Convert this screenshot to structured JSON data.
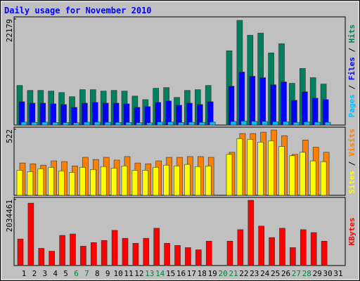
{
  "chart_data": {
    "type": "bar",
    "title": "Daily usage for November 2010",
    "categories": [
      "1",
      "2",
      "3",
      "4",
      "5",
      "6",
      "7",
      "8",
      "9",
      "10",
      "11",
      "12",
      "13",
      "14",
      "15",
      "16",
      "17",
      "18",
      "19",
      "20",
      "21",
      "22",
      "23",
      "24",
      "25",
      "26",
      "27",
      "28",
      "29",
      "30",
      "31"
    ],
    "weekend": [
      false,
      false,
      false,
      false,
      false,
      true,
      true,
      false,
      false,
      false,
      false,
      false,
      true,
      true,
      false,
      false,
      false,
      false,
      false,
      true,
      true,
      false,
      false,
      false,
      false,
      false,
      true,
      true,
      false,
      false,
      false
    ],
    "weekend_color": "#008040",
    "panels": [
      {
        "ylim": [
          0,
          22179
        ],
        "yticks": [
          22179
        ],
        "series": [
          {
            "name": "Hits",
            "color": "#00805c",
            "values": [
              8280,
              7250,
              7250,
              7100,
              6800,
              5920,
              7400,
              7400,
              7100,
              7250,
              7100,
              6060,
              5320,
              7690,
              7840,
              5770,
              7250,
              7400,
              8280,
              null,
              15530,
              21890,
              18780,
              19230,
              15090,
              17010,
              8730,
              11830,
              9910,
              8580,
              null
            ]
          },
          {
            "name": "Files",
            "color": "#0000ff",
            "values": [
              4880,
              4580,
              4580,
              4440,
              4290,
              3700,
              4580,
              4730,
              4580,
              4580,
              4440,
              3700,
              3850,
              4730,
              5030,
              4140,
              4580,
              4290,
              4880,
              null,
              8130,
              11090,
              10200,
              9910,
              8430,
              9020,
              5180,
              6950,
              5620,
              5320,
              null
            ]
          },
          {
            "name": "Pages",
            "color": "#00c0ff",
            "values": [
              600,
              560,
              590,
              540,
              520,
              480,
              600,
              610,
              580,
              560,
              550,
              500,
              470,
              620,
              640,
              520,
              590,
              560,
              620,
              null,
              740,
              820,
              780,
              760,
              700,
              720,
              560,
              640,
              590,
              580,
              null
            ]
          }
        ]
      },
      {
        "ylim": [
          0,
          522
        ],
        "yticks": [
          522
        ],
        "series": [
          {
            "name": "Visits",
            "color": "#ff8000",
            "values": [
              255,
              249,
              238,
              272,
              266,
              232,
              300,
              283,
              300,
              278,
              306,
              255,
              249,
              272,
              300,
              300,
              306,
              306,
              300,
              null,
              340,
              488,
              488,
              499,
              516,
              471,
              323,
              437,
              380,
              340,
              null
            ]
          },
          {
            "name": "Sites",
            "color": "#ffff00",
            "values": [
              198,
              187,
              210,
              221,
              193,
              181,
              221,
              204,
              227,
              215,
              232,
              198,
              198,
              221,
              238,
              232,
              244,
              227,
              232,
              null,
              323,
              448,
              442,
              420,
              431,
              386,
              312,
              340,
              272,
              266,
              null
            ]
          }
        ]
      },
      {
        "ylim": [
          0,
          2034461
        ],
        "yticks": [
          2034461
        ],
        "series": [
          {
            "name": "KBytes",
            "color": "#ff0000",
            "values": [
              818000,
              1924000,
              531000,
              442000,
              929000,
              973000,
              597000,
              708000,
              774000,
              1084000,
              840000,
              686000,
              840000,
              1150000,
              686000,
              619000,
              553000,
              486000,
              752000,
              null,
              752000,
              1106000,
              2012000,
              1216000,
              862000,
              1150000,
              553000,
              1106000,
              1017000,
              752000,
              null
            ]
          }
        ]
      }
    ]
  }
}
